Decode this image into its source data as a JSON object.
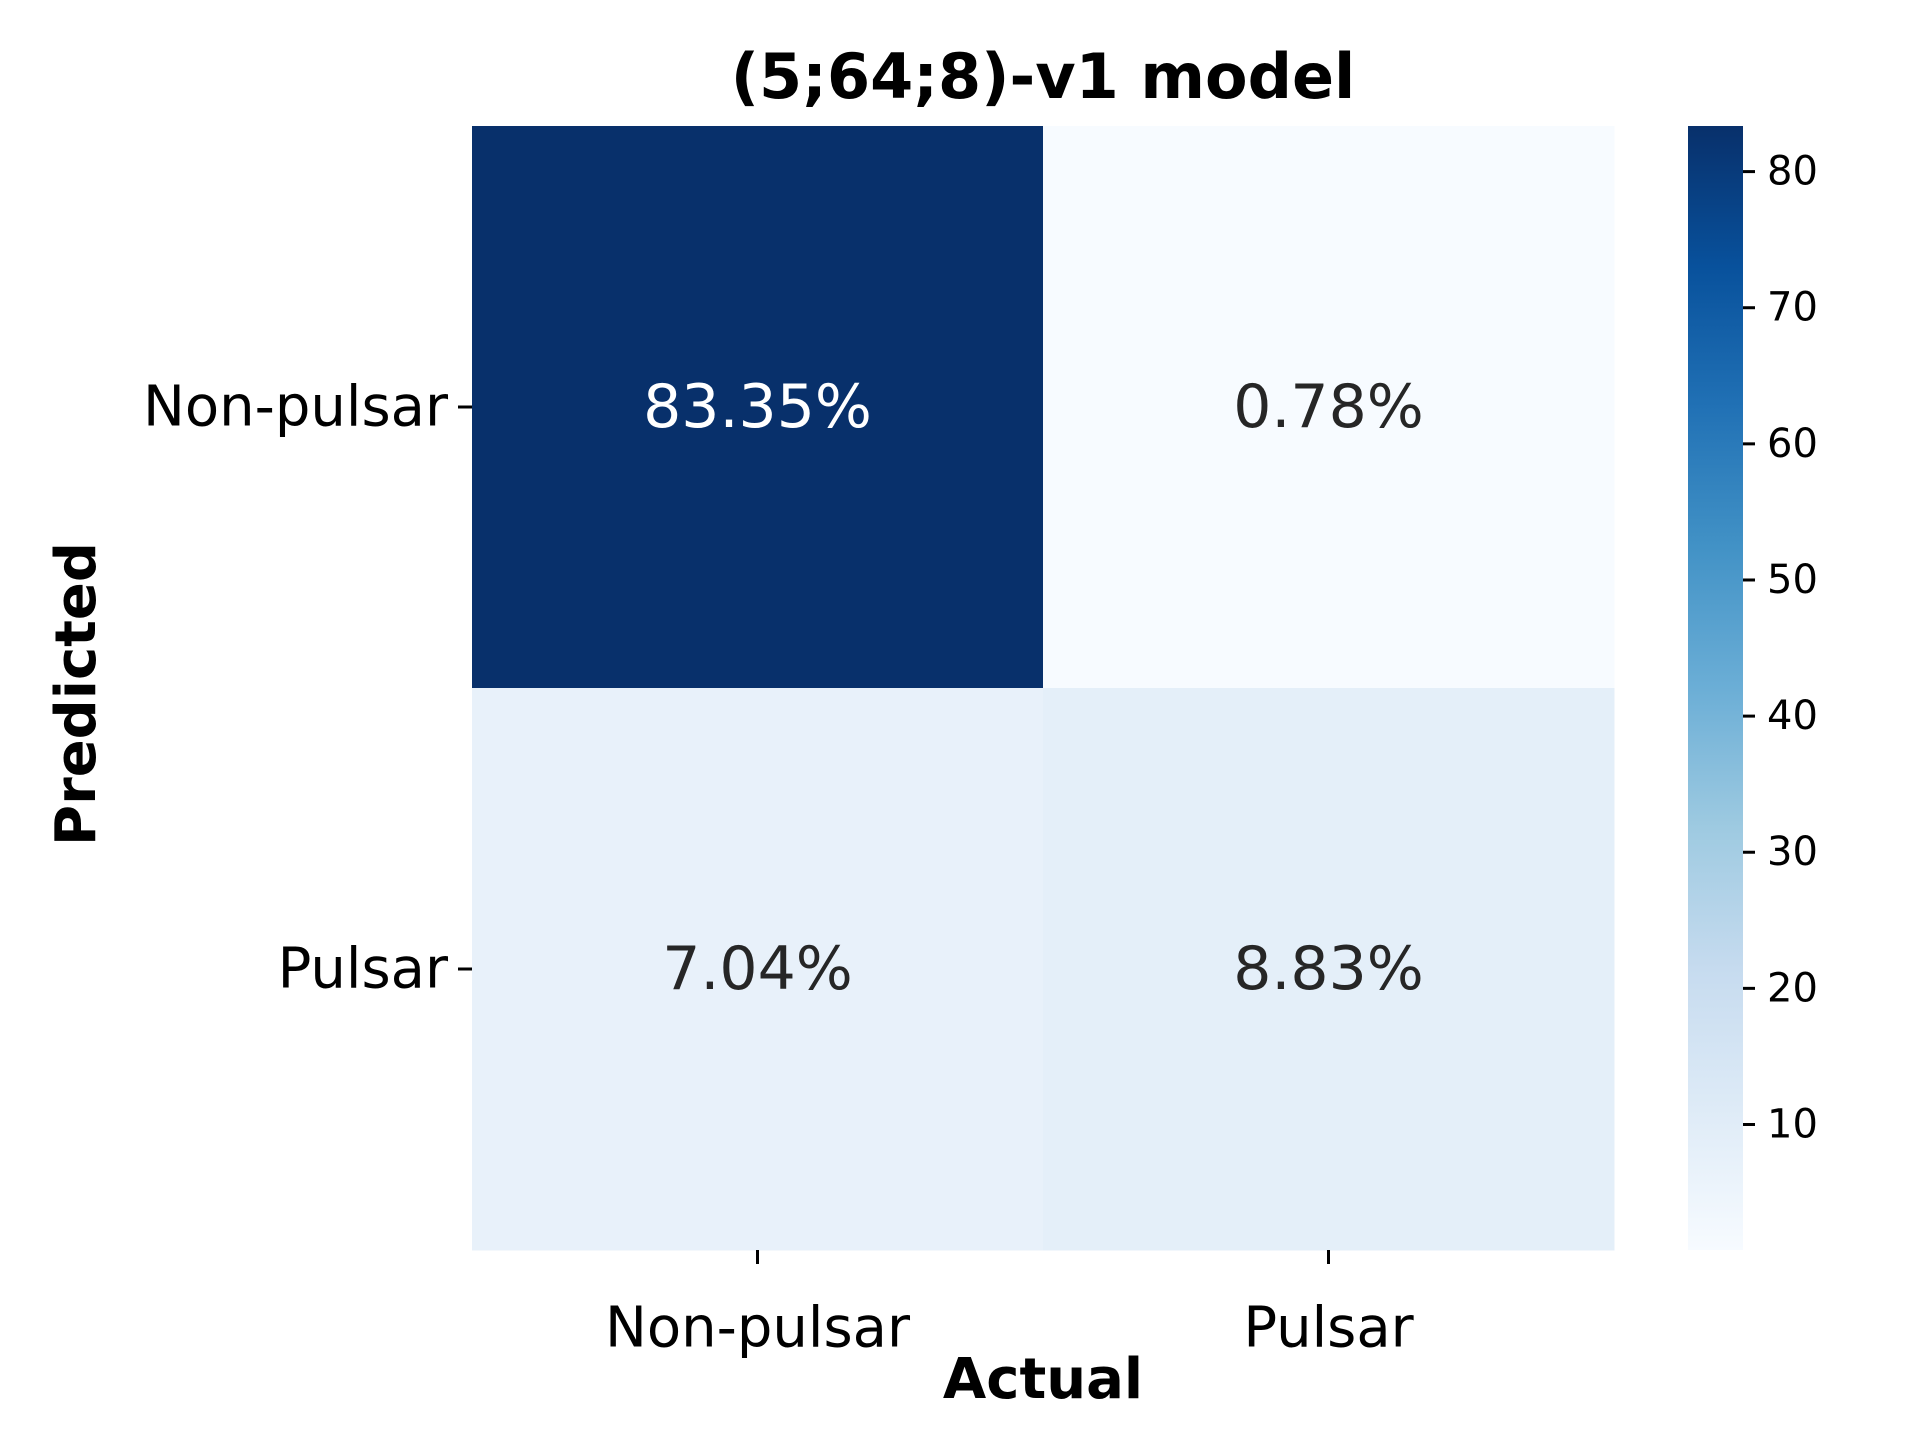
{
  "chart_data": {
    "type": "heatmap",
    "title": "(5;64;8)-v1 model",
    "xlabel": "Actual",
    "ylabel": "Predicted",
    "x_categories": [
      "Non-pulsar",
      "Pulsar"
    ],
    "y_categories": [
      "Non-pulsar",
      "Pulsar"
    ],
    "values": [
      [
        83.35,
        0.78
      ],
      [
        7.04,
        8.83
      ]
    ],
    "cell_labels": [
      [
        "83.35%",
        "0.78%"
      ],
      [
        "7.04%",
        "8.83%"
      ]
    ],
    "colormap": "Blues",
    "colorbar": {
      "range": [
        0.78,
        83.35
      ],
      "ticks": [
        10,
        20,
        30,
        40,
        50,
        60,
        70,
        80
      ],
      "tick_labels": [
        "10",
        "20",
        "30",
        "40",
        "50",
        "60",
        "70",
        "80"
      ]
    },
    "colors": {
      "dark_text": "#262626",
      "light_text": "#ffffff"
    }
  }
}
